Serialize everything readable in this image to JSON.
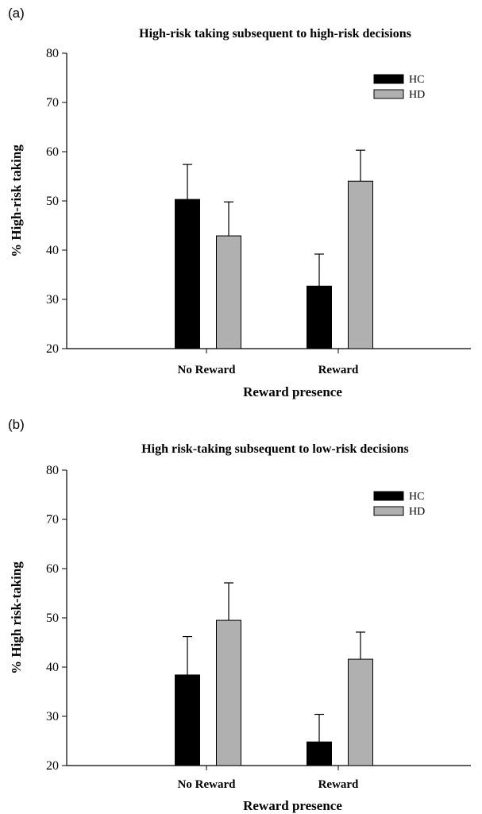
{
  "colors": {
    "HC": "#000000",
    "HD": "#b0b0b0",
    "axis": "#000000"
  },
  "chart_data": [
    {
      "panel": "(a)",
      "type": "bar",
      "title": "High-risk taking subsequent to high-risk decisions",
      "xlabel": "Reward presence",
      "ylabel": "% High-risk taking",
      "ylim": [
        20,
        80
      ],
      "yticks": [
        20,
        30,
        40,
        50,
        60,
        70,
        80
      ],
      "categories": [
        "No Reward",
        "Reward"
      ],
      "legend_position": "top-right",
      "grid": false,
      "series": [
        {
          "name": "HC",
          "values": [
            50.3,
            32.7
          ],
          "errors": [
            7.1,
            6.5
          ]
        },
        {
          "name": "HD",
          "values": [
            42.9,
            54.0
          ],
          "errors": [
            6.9,
            6.3
          ]
        }
      ]
    },
    {
      "panel": "(b)",
      "type": "bar",
      "title": "High risk-taking subsequent to low-risk decisions",
      "xlabel": "Reward presence",
      "ylabel": "% High risk-taking",
      "ylim": [
        20,
        80
      ],
      "yticks": [
        20,
        30,
        40,
        50,
        60,
        70,
        80
      ],
      "categories": [
        "No Reward",
        "Reward"
      ],
      "legend_position": "top-right",
      "grid": false,
      "series": [
        {
          "name": "HC",
          "values": [
            38.4,
            24.8
          ],
          "errors": [
            7.8,
            5.6
          ]
        },
        {
          "name": "HD",
          "values": [
            49.5,
            41.6
          ],
          "errors": [
            7.6,
            5.5
          ]
        }
      ]
    }
  ]
}
